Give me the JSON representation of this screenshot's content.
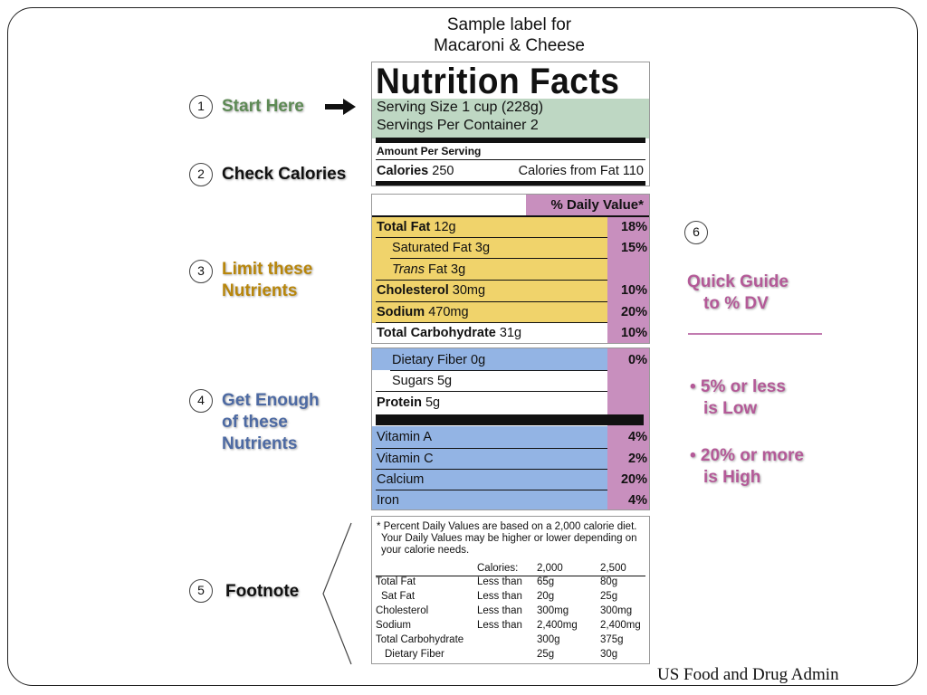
{
  "title": {
    "line1": "Sample label for",
    "line2": "Macaroni & Cheese"
  },
  "callouts": {
    "c1": {
      "num": "1",
      "text": "Start Here",
      "arrow": "arrow-right-icon"
    },
    "c2": {
      "num": "2",
      "text": "Check Calories"
    },
    "c3": {
      "num": "3",
      "line1": "Limit these",
      "line2": "Nutrients"
    },
    "c4": {
      "num": "4",
      "line1": "Get Enough",
      "line2": "of these",
      "line3": "Nutrients"
    },
    "c5": {
      "num": "5",
      "text": "Footnote"
    },
    "c6": {
      "num": "6"
    }
  },
  "guide": {
    "title1": "Quick Guide",
    "title2": "to % DV",
    "b1_line1": "• 5% or less",
    "b1_line2": "is Low",
    "b2_line1": "• 20% or more",
    "b2_line2": "is High"
  },
  "label": {
    "heading": "Nutrition Facts",
    "serving_size": "Serving Size 1 cup (228g)",
    "servings_per": "Servings Per Container  2",
    "amount_per": "Amount Per Serving",
    "calories_label": "Calories",
    "calories_value": "250",
    "calories_fat": "Calories from Fat 110",
    "dv_header": "% Daily Value*",
    "nutrients": [
      {
        "name": "Total Fat",
        "amount": "12g",
        "dv": "18%"
      },
      {
        "name": "Saturated Fat",
        "amount": "3g",
        "dv": "15%"
      },
      {
        "name": "Trans",
        "name2": "Fat 3g",
        "dv": ""
      },
      {
        "name": "Cholesterol",
        "amount": "30mg",
        "dv": "10%"
      },
      {
        "name": "Sodium",
        "amount": "470mg",
        "dv": "20%"
      },
      {
        "name": "Total Carbohydrate",
        "amount": "31g",
        "dv": "10%"
      },
      {
        "name": "Dietary Fiber",
        "amount": "0g",
        "dv": "0%"
      },
      {
        "name": "Sugars",
        "amount": "5g",
        "dv": ""
      },
      {
        "name": "Protein",
        "amount": "5g",
        "dv": ""
      }
    ],
    "vitamins": [
      {
        "name": "Vitamin A",
        "dv": "4%"
      },
      {
        "name": "Vitamin C",
        "dv": "2%"
      },
      {
        "name": "Calcium",
        "dv": "20%"
      },
      {
        "name": "Iron",
        "dv": "4%"
      }
    ],
    "footnote": {
      "line1": "* Percent Daily Values are based on a 2,000 calorie diet.",
      "line2": "Your Daily Values may be higher or lower depending on",
      "line3": "your calorie needs.",
      "hdr_cal": "Calories:",
      "hdr_2000": "2,000",
      "hdr_2500": "2,500",
      "rows": [
        {
          "name": "Total Fat",
          "lt": "Less than",
          "a": "65g",
          "b": "80g"
        },
        {
          "name": "Sat Fat",
          "lt": "Less than",
          "a": "20g",
          "b": "25g"
        },
        {
          "name": "Cholesterol",
          "lt": "Less than",
          "a": "300mg",
          "b": "300mg"
        },
        {
          "name": "Sodium",
          "lt": "Less than",
          "a": "2,400mg",
          "b": "2,400mg"
        },
        {
          "name": "Total Carbohydrate",
          "lt": "",
          "a": "300g",
          "b": "375g"
        },
        {
          "name": "Dietary Fiber",
          "lt": "",
          "a": "25g",
          "b": "30g"
        }
      ]
    }
  },
  "source": "US Food and Drug Admin",
  "colors": {
    "serving_band": "#bed7c3",
    "limit_band": "#f0d36b",
    "enough_band": "#93b4e4",
    "dv_column": "#c88fbe"
  }
}
